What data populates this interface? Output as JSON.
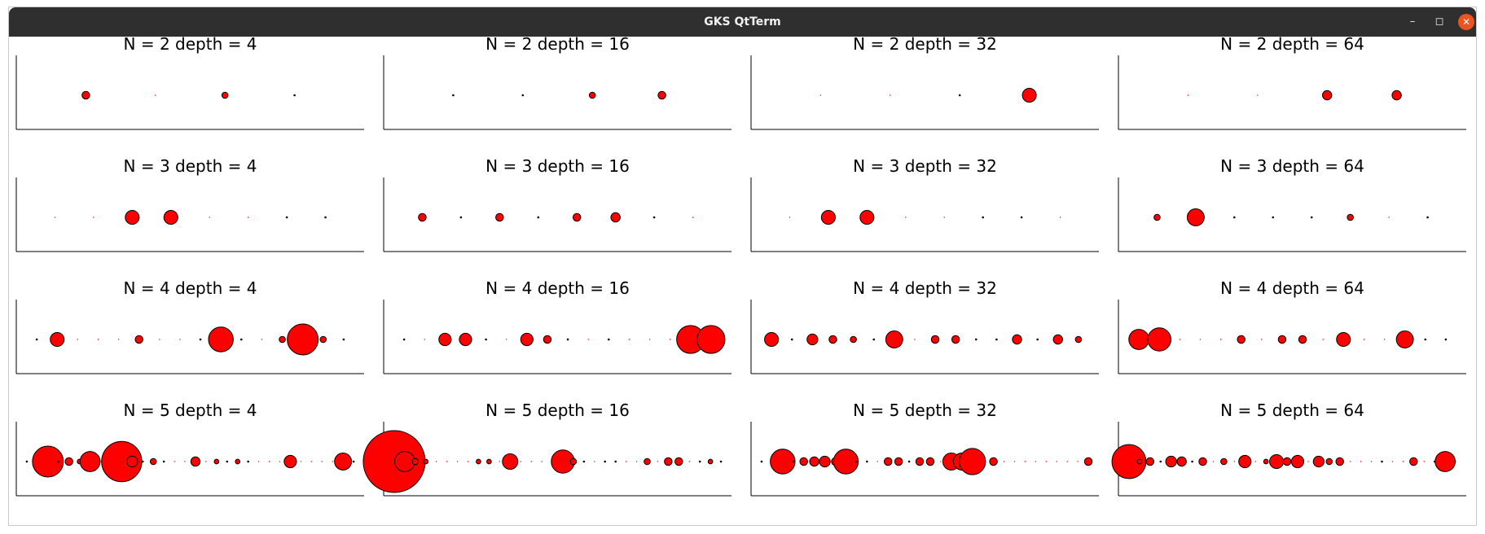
{
  "window": {
    "title": "GKS QtTerm",
    "minimize_icon": "minimize-icon",
    "maximize_icon": "maximize-icon",
    "close_icon": "close-icon"
  },
  "colors": {
    "marker_fill": "#ff0000",
    "marker_edge": "#000000",
    "axis": "#000000"
  },
  "chart_data": [
    {
      "type": "scatter",
      "title": "N = 2 depth = 4",
      "x": [
        1,
        2,
        3,
        4
      ],
      "size": [
        5,
        1,
        4,
        2
      ]
    },
    {
      "type": "scatter",
      "title": "N = 2 depth = 16",
      "x": [
        1,
        2,
        3,
        4
      ],
      "size": [
        2,
        2,
        4,
        5
      ]
    },
    {
      "type": "scatter",
      "title": "N = 2 depth = 32",
      "x": [
        1,
        2,
        3,
        4
      ],
      "size": [
        1,
        1,
        2,
        9
      ]
    },
    {
      "type": "scatter",
      "title": "N = 2 depth = 64",
      "x": [
        1,
        2,
        3,
        4
      ],
      "size": [
        1,
        1,
        6,
        6
      ]
    },
    {
      "type": "scatter",
      "title": "N = 3 depth = 4",
      "x": [
        1,
        2,
        3,
        4,
        5,
        6,
        7,
        8
      ],
      "size": [
        1,
        1,
        9,
        9,
        1,
        1,
        2,
        2
      ]
    },
    {
      "type": "scatter",
      "title": "N = 3 depth = 16",
      "x": [
        1,
        2,
        3,
        4,
        5,
        6,
        7,
        8
      ],
      "size": [
        5,
        2,
        5,
        2,
        5,
        6,
        2,
        1
      ]
    },
    {
      "type": "scatter",
      "title": "N = 3 depth = 32",
      "x": [
        1,
        2,
        3,
        4,
        5,
        6,
        7,
        8
      ],
      "size": [
        1,
        9,
        9,
        1,
        1,
        2,
        2,
        1
      ]
    },
    {
      "type": "scatter",
      "title": "N = 3 depth = 64",
      "x": [
        1,
        2,
        3,
        4,
        5,
        6,
        7,
        8
      ],
      "size": [
        4,
        11,
        2,
        2,
        2,
        4,
        1,
        2
      ]
    },
    {
      "type": "scatter",
      "title": "N = 4 depth = 4",
      "x": [
        1,
        2,
        3,
        4,
        5,
        6,
        7,
        8,
        9,
        10,
        11,
        12,
        13,
        14,
        15,
        16
      ],
      "size": [
        2,
        9,
        1,
        1,
        1,
        5,
        1,
        1,
        2,
        16,
        2,
        1,
        4,
        20,
        4,
        2
      ]
    },
    {
      "type": "scatter",
      "title": "N = 4 depth = 16",
      "x": [
        1,
        2,
        3,
        4,
        5,
        6,
        7,
        8,
        9,
        10,
        11,
        12,
        13,
        14,
        15,
        16
      ],
      "size": [
        2,
        1,
        8,
        8,
        2,
        1,
        8,
        5,
        2,
        1,
        2,
        1,
        1,
        1,
        18,
        18
      ]
    },
    {
      "type": "scatter",
      "title": "N = 4 depth = 32",
      "x": [
        1,
        2,
        3,
        4,
        5,
        6,
        7,
        8,
        9,
        10,
        11,
        12,
        13,
        14,
        15,
        16
      ],
      "size": [
        9,
        2,
        7,
        5,
        4,
        2,
        11,
        1,
        5,
        5,
        2,
        2,
        6,
        2,
        6,
        4
      ]
    },
    {
      "type": "scatter",
      "title": "N = 4 depth = 64",
      "x": [
        1,
        2,
        3,
        4,
        5,
        6,
        7,
        8,
        9,
        10,
        11,
        12,
        13,
        14,
        15,
        16
      ],
      "size": [
        13,
        15,
        1,
        1,
        1,
        5,
        1,
        5,
        5,
        1,
        9,
        1,
        1,
        11,
        2,
        2
      ],
      "note": ""
    },
    {
      "type": "scatter",
      "title": "N = 5 depth = 4",
      "x": [
        1,
        2,
        3,
        4,
        5,
        6,
        7,
        8,
        9,
        10,
        11,
        12,
        13,
        14,
        15,
        16,
        17,
        18,
        19,
        20,
        21,
        22,
        23,
        24,
        25,
        26,
        27,
        28,
        29,
        30,
        31,
        32
      ],
      "size": [
        2,
        2,
        20,
        2,
        5,
        3,
        13,
        1,
        1,
        26,
        7,
        2,
        4,
        2,
        1,
        1,
        6,
        1,
        3,
        2,
        3,
        2,
        1,
        1,
        1,
        8,
        1,
        1,
        1,
        1,
        11,
        2
      ]
    },
    {
      "type": "scatter",
      "title": "N = 5 depth = 16",
      "x": [
        1,
        2,
        3,
        4,
        5,
        6,
        7,
        8,
        9,
        10,
        11,
        12,
        13,
        14,
        15,
        16,
        17,
        18,
        19,
        20,
        21,
        22,
        23,
        24,
        25,
        26,
        27,
        28,
        29,
        30,
        31,
        32
      ],
      "size": [
        40,
        13,
        4,
        3,
        1,
        1,
        1,
        1,
        3,
        3,
        1,
        10,
        1,
        1,
        1,
        1,
        15,
        4,
        2,
        1,
        2,
        2,
        1,
        1,
        4,
        1,
        5,
        5,
        1,
        2,
        3,
        2
      ]
    },
    {
      "type": "scatter",
      "title": "N = 5 depth = 32",
      "x": [
        1,
        2,
        3,
        4,
        5,
        6,
        7,
        8,
        9,
        10,
        11,
        12,
        13,
        14,
        15,
        16,
        17,
        18,
        19,
        20,
        21,
        22,
        23,
        24,
        25,
        26,
        27,
        28,
        29,
        30,
        31,
        32
      ],
      "size": [
        2,
        2,
        16,
        2,
        5,
        6,
        7,
        5,
        16,
        2,
        2,
        1,
        5,
        5,
        2,
        5,
        5,
        1,
        11,
        11,
        17,
        1,
        5,
        1,
        1,
        1,
        1,
        1,
        1,
        1,
        1,
        5
      ]
    },
    {
      "type": "scatter",
      "title": "N = 5 depth = 64",
      "x": [
        1,
        2,
        3,
        4,
        5,
        6,
        7,
        8,
        9,
        10,
        11,
        12,
        13,
        14,
        15,
        16,
        17,
        18,
        19,
        20,
        21,
        22,
        23,
        24,
        25,
        26,
        27,
        28,
        29,
        30,
        31,
        32
      ],
      "size": [
        22,
        3,
        5,
        2,
        7,
        6,
        2,
        5,
        1,
        4,
        1,
        8,
        1,
        3,
        9,
        5,
        8,
        1,
        7,
        4,
        5,
        1,
        1,
        1,
        2,
        1,
        1,
        5,
        1,
        2,
        13,
        1
      ]
    }
  ]
}
